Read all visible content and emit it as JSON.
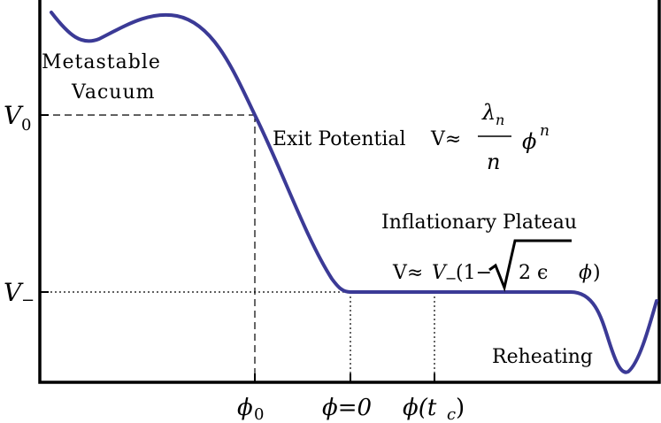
{
  "labels": {
    "metastable_line1": "Metastable",
    "metastable_line2": "Vacuum",
    "exit_potential": "Exit  Potential",
    "exit_formula_lhs": "V≈",
    "exit_formula_num": "λ",
    "exit_formula_num_sub": "n",
    "exit_formula_den": "n",
    "exit_formula_phi": "ϕ",
    "exit_formula_exp": "n",
    "plateau_title": "Inflationary  Plateau",
    "plateau_formula_lhs": "V≈",
    "plateau_formula_v": "V",
    "plateau_formula_v_sub": "−",
    "plateau_formula_mid": "(1−",
    "plateau_formula_root": "2  ϵ",
    "plateau_formula_phi": "ϕ",
    "plateau_formula_close": ")",
    "reheating": "Reheating"
  },
  "y_axis": {
    "v0": "V",
    "v0_sub": "0",
    "vminus": "V",
    "vminus_sub": "−"
  },
  "x_axis": {
    "phi0": "ϕ",
    "phi0_sub": "0",
    "phi_zero": "ϕ=0",
    "phi_tc": "ϕ(t",
    "phi_tc_sub": "c",
    "phi_tc_close": ")"
  },
  "colors": {
    "curve": "#3b3a96",
    "frame": "#000000"
  }
}
